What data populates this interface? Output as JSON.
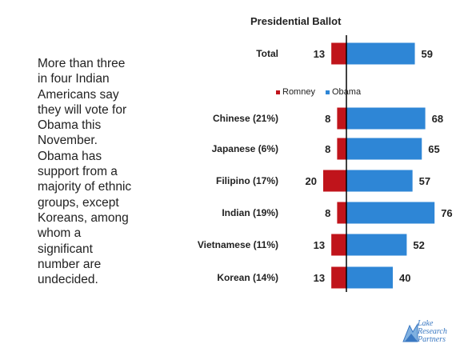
{
  "side_text": "More than three in four Indian Americans say they will vote for Obama this November. Obama has support from a majority of ethnic groups, except Koreans, among whom a significant number are undecided.",
  "logo": {
    "line1": "Lake",
    "line2": "Research",
    "line3": "Partners"
  },
  "chart_data": {
    "type": "bar",
    "orientation": "horizontal-diverging",
    "title": "Presidential Ballot",
    "categories": [
      "Total",
      "Chinese (21%)",
      "Japanese (6%)",
      "Filipino (17%)",
      "Indian (19%)",
      "Vietnamese (11%)",
      "Korean (14%)"
    ],
    "series": [
      {
        "name": "Romney",
        "values": [
          13,
          8,
          8,
          20,
          8,
          13,
          13
        ],
        "color": "#c0141b"
      },
      {
        "name": "Obama",
        "values": [
          59,
          68,
          65,
          57,
          76,
          52,
          40
        ],
        "color": "#2e86d6"
      }
    ],
    "legend_position": "top-center",
    "grid": false
  }
}
